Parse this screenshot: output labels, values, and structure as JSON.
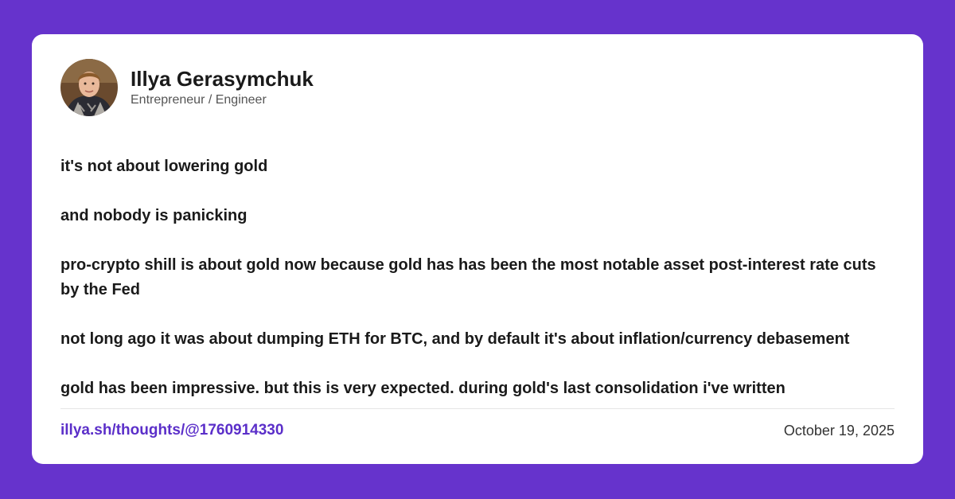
{
  "author": {
    "name": "Illya Gerasymchuk",
    "role": "Entrepreneur / Engineer"
  },
  "post": {
    "paragraphs": [
      "it's not about lowering gold",
      "and nobody is panicking",
      "pro-crypto shill is about gold now because gold has has been the most notable asset post-interest rate cuts by the Fed",
      "not long ago it was about dumping ETH for BTC, and by default it's about inflation/currency debasement",
      "gold has been impressive. but this is very expected. during gold's last consolidation i've written"
    ]
  },
  "footer": {
    "link_text": "illya.sh/thoughts/@1760914330",
    "date": "October 19, 2025"
  },
  "colors": {
    "background": "#6633cc",
    "card": "#ffffff",
    "link": "#5b2fc9"
  }
}
